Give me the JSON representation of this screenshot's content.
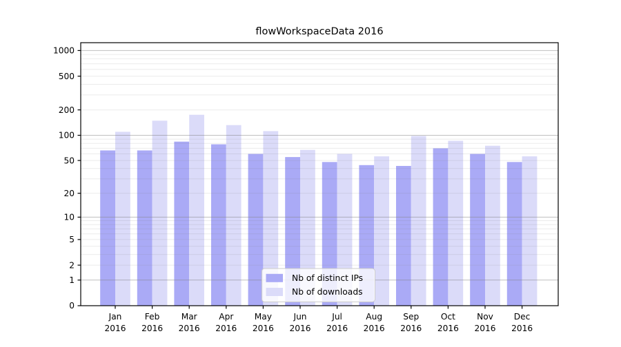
{
  "chart_data": {
    "type": "bar",
    "title": "flowWorkspaceData 2016",
    "y_scale": "log10(1+value)",
    "categories": [
      "Jan",
      "Feb",
      "Mar",
      "Apr",
      "May",
      "Jun",
      "Jul",
      "Aug",
      "Sep",
      "Oct",
      "Nov",
      "Dec"
    ],
    "year_label": "2016",
    "series": [
      {
        "name": "Nb of distinct IPs",
        "color": "#aaaaf6",
        "values": [
          66,
          66,
          84,
          78,
          60,
          55,
          48,
          44,
          43,
          70,
          60,
          48
        ]
      },
      {
        "name": "Nb of downloads",
        "color": "#dbdbf9",
        "values": [
          110,
          149,
          175,
          132,
          112,
          67,
          60,
          56,
          98,
          86,
          75,
          56
        ]
      }
    ],
    "y_ticks": [
      1000,
      500,
      200,
      100,
      50,
      20,
      10,
      5,
      2,
      1,
      0
    ],
    "y_tick_labels": [
      "1000",
      "500",
      "200",
      "100",
      "50",
      "20",
      "10",
      "5",
      "2",
      "1",
      "0"
    ],
    "ylim": [
      0,
      1238
    ],
    "xlabel": "",
    "ylabel": "",
    "grid": {
      "on": true,
      "drawn_above_bars": true,
      "major_values": [
        1,
        10,
        100,
        1000
      ],
      "minor_values": [
        2,
        3,
        4,
        5,
        6,
        7,
        8,
        9,
        20,
        30,
        40,
        50,
        60,
        70,
        80,
        90,
        200,
        300,
        400,
        500,
        600,
        700,
        800,
        900
      ],
      "major_color": "rgba(128,128,128,0.5)",
      "minor_color": "rgba(128,128,128,0.16)"
    },
    "legend": {
      "position": "lower center",
      "entries": [
        "Nb of distinct IPs",
        "Nb of downloads"
      ],
      "background": "rgba(255,255,255,0.8)",
      "border_color": "#cccccc"
    },
    "axis": {
      "spine_color": "#000000",
      "tick_color": "#000000"
    }
  }
}
